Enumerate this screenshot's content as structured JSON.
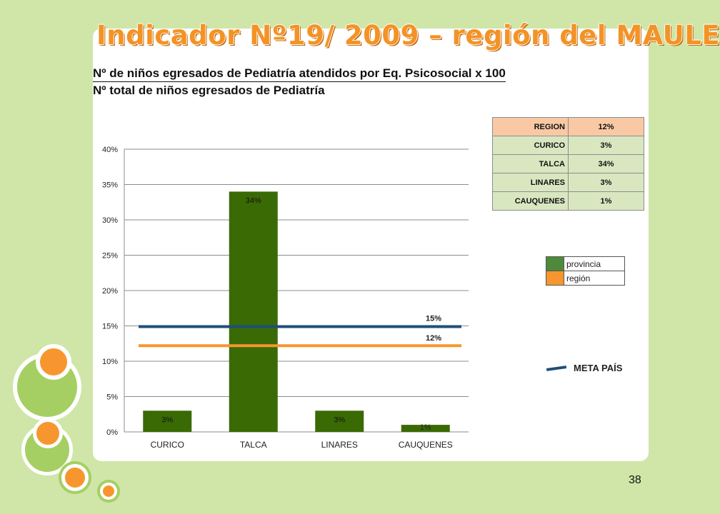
{
  "slide": {
    "title": "Indicador Nº19/ 2009 – región del MAULE",
    "formula_numerator": "Nº de niños egresados de Pediatría  atendidos por Eq. Psicosocial x 100",
    "formula_denominator": "Nº total de niños egresados de Pediatría",
    "page_number": "38"
  },
  "colors": {
    "background": "#cfe6a8",
    "bar": "#3a6a04",
    "provincia": "#4f8a3b",
    "region": "#f7962f",
    "meta_pais": "#1f4e79",
    "title": "#f39325"
  },
  "table": {
    "rows": [
      {
        "label": "REGION",
        "value": "12%"
      },
      {
        "label": "CURICO",
        "value": "3%"
      },
      {
        "label": "TALCA",
        "value": "34%"
      },
      {
        "label": "LINARES",
        "value": "3%"
      },
      {
        "label": "CAUQUENES",
        "value": "1%"
      }
    ]
  },
  "legend": {
    "provincia": "provincia",
    "region": "región",
    "meta_pais": "META PAÍS"
  },
  "chart_data": {
    "type": "bar",
    "categories": [
      "CURICO",
      "TALCA",
      "LINARES",
      "CAUQUENES"
    ],
    "values": [
      3,
      34,
      3,
      1
    ],
    "data_labels": [
      "3%",
      "34%",
      "3%",
      "1%"
    ],
    "ylim": [
      0,
      40
    ],
    "yticks": [
      "0%",
      "5%",
      "10%",
      "15%",
      "20%",
      "25%",
      "30%",
      "35%",
      "40%"
    ],
    "grid": true,
    "reference_lines": [
      {
        "name": "META PAÍS",
        "value": 15,
        "label": "15%"
      },
      {
        "name": "región",
        "value": 12,
        "label": "12%"
      }
    ]
  }
}
